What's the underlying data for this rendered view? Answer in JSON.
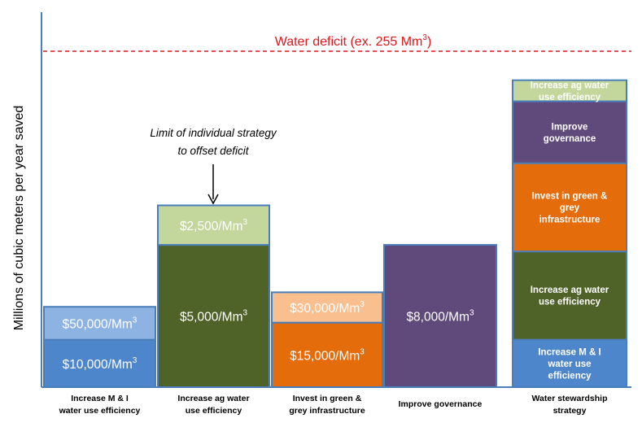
{
  "chart_data": {
    "type": "bar",
    "ylabel": "Millions of cubic meters per year saved",
    "deficit": {
      "label": "Water deficit (ex. 255 Mm",
      "label_sup": "3",
      "label_end": ")",
      "value": 255,
      "color": "#e0161c"
    },
    "annotation": {
      "line1": "Limit of individual strategy",
      "line2": "to offset deficit"
    },
    "ylim": [
      0,
      260
    ],
    "categories": [
      {
        "label_lines": [
          "Increase M & I",
          "water use efficiency"
        ],
        "segments": [
          {
            "value": 36,
            "label": "$10,000/Mm",
            "sup": "3",
            "color": "#4e86cc"
          },
          {
            "value": 25,
            "label": "$50,000/Mm",
            "sup": "3",
            "color": "#8db3e2"
          }
        ]
      },
      {
        "label_lines": [
          "Increase ag water",
          "use efficiency"
        ],
        "segments": [
          {
            "value": 108,
            "label": "$5,000/Mm",
            "sup": "3",
            "color": "#4f6228"
          },
          {
            "value": 30,
            "label": "$2,500/Mm",
            "sup": "3",
            "color": "#c3d69b"
          }
        ]
      },
      {
        "label_lines": [
          "Invest in green &",
          "grey infrastructure"
        ],
        "segments": [
          {
            "value": 49,
            "label": "$15,000/Mm",
            "sup": "3",
            "color": "#e46c0a"
          },
          {
            "value": 23,
            "label": "$30,000/Mm",
            "sup": "3",
            "color": "#fabf8f"
          }
        ]
      },
      {
        "label_lines": [
          "Improve governance"
        ],
        "segments": [
          {
            "value": 108,
            "label": "$8,000/Mm",
            "sup": "3",
            "color": "#604a7b"
          }
        ]
      },
      {
        "label_lines": [
          "Water stewardship",
          "strategy"
        ],
        "segments": [
          {
            "value": 36,
            "label_lines": [
              "Increase M & I",
              "water use",
              "efficiency"
            ],
            "color": "#4e86cc"
          },
          {
            "value": 67,
            "label_lines": [
              "Increase ag water",
              "use efficiency"
            ],
            "color": "#4f6228"
          },
          {
            "value": 67,
            "label_lines": [
              "Invest in green &",
              "grey",
              "infrastructure"
            ],
            "color": "#e46c0a"
          },
          {
            "value": 47,
            "label_lines": [
              "Improve",
              "governance"
            ],
            "color": "#604a7b"
          },
          {
            "value": 16,
            "label_lines": [
              "Increase ag water",
              "use efficiency"
            ],
            "color": "#c3d69b"
          }
        ]
      }
    ]
  }
}
